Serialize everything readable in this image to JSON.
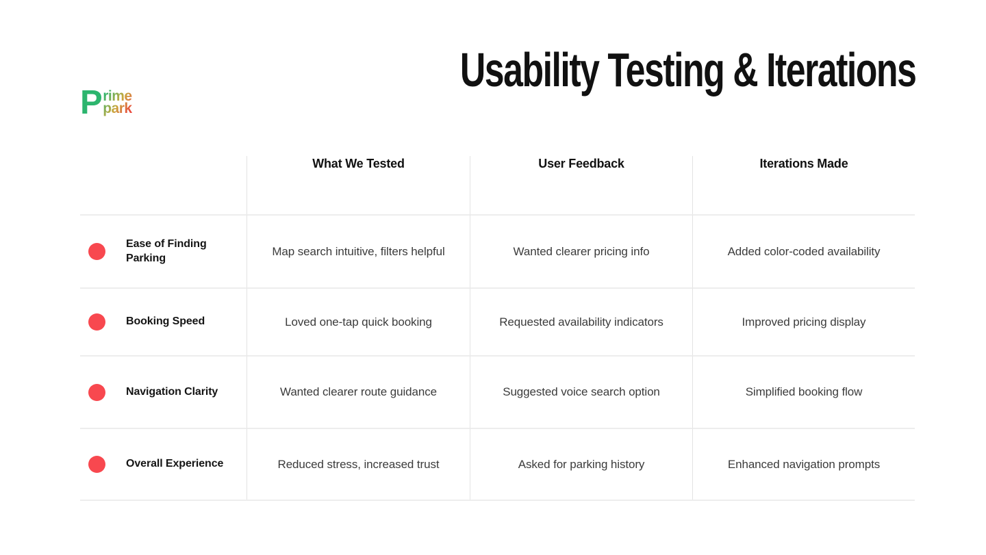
{
  "logo": {
    "initial": "P",
    "line1": "rime",
    "line2": "park"
  },
  "title": "Usability Testing & Iterations",
  "table": {
    "columns": [
      "What We Tested",
      "User Feedback",
      "Iterations Made"
    ],
    "rows": [
      {
        "label": "Ease of Finding Parking",
        "tested": "Map search intuitive, filters helpful",
        "feedback": "Wanted clearer pricing info",
        "iteration": "Added color-coded availability"
      },
      {
        "label": "Booking Speed",
        "tested": "Loved one-tap quick booking",
        "feedback": "Requested availability indicators",
        "iteration": "Improved pricing display"
      },
      {
        "label": "Navigation Clarity",
        "tested": "Wanted clearer route guidance",
        "feedback": "Suggested voice search option",
        "iteration": "Simplified booking flow"
      },
      {
        "label": "Overall Experience",
        "tested": "Reduced stress, increased trust",
        "feedback": "Asked for parking history",
        "iteration": "Enhanced navigation prompts"
      }
    ]
  },
  "colors": {
    "bullet": "#f8484f",
    "grid_line_vertical": "#e3e3e3",
    "grid_line_horizontal": "#ededed",
    "title_text": "#111111",
    "body_text": "#3b3b3b",
    "logo_green": "#2cb56e",
    "logo_red": "#ea4b3f"
  }
}
